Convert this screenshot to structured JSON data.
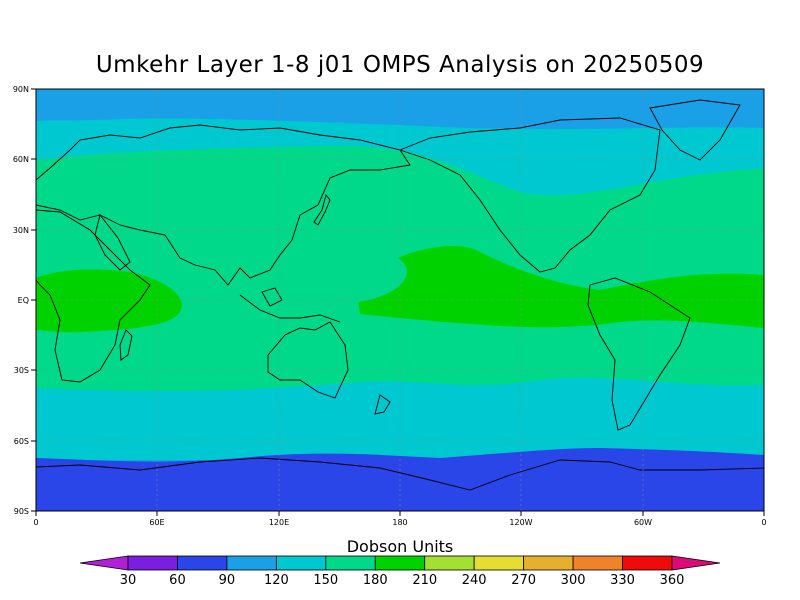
{
  "title": "Umkehr Layer 1-8 j01 OMPS Analysis on 20250509",
  "colorbar": {
    "title": "Dobson Units",
    "levels": [
      "30",
      "60",
      "90",
      "120",
      "150",
      "180",
      "210",
      "240",
      "270",
      "300",
      "330",
      "360"
    ],
    "colors": [
      "#b020d8",
      "#7a1ee0",
      "#2a45e8",
      "#1aa0e6",
      "#00c8d0",
      "#00d88a",
      "#00d200",
      "#a4e032",
      "#e6dc32",
      "#e6af2d",
      "#f0822a",
      "#f00a0a",
      "#dc0a78"
    ]
  },
  "axes": {
    "lat_labels": [
      "90N",
      "60N",
      "30N",
      "EQ",
      "30S",
      "60S",
      "90S"
    ],
    "lon_labels": [
      "0",
      "60E",
      "120E",
      "180",
      "120W",
      "60W",
      "0"
    ]
  },
  "chart_data": {
    "type": "heatmap",
    "title": "Umkehr Layer 1-8 j01 OMPS Analysis on 20250509",
    "units": "Dobson Units",
    "x_range": [
      0,
      360
    ],
    "y_range": [
      -90,
      90
    ],
    "bands_by_latitude": [
      {
        "lat_range": [
          "90N",
          "75N"
        ],
        "value_range": [
          90,
          120
        ]
      },
      {
        "lat_range": [
          "75N",
          "55N"
        ],
        "value_range": [
          150,
          180
        ]
      },
      {
        "lat_range": [
          "55N",
          "15N"
        ],
        "value_range": [
          180,
          210
        ]
      },
      {
        "lat_range": [
          "15N",
          "10S"
        ],
        "value_range": [
          210,
          240
        ]
      },
      {
        "lat_range": [
          "10S",
          "30S"
        ],
        "value_range": [
          180,
          210
        ]
      },
      {
        "lat_range": [
          "30S",
          "55S"
        ],
        "value_range": [
          150,
          180
        ]
      },
      {
        "lat_range": [
          "55S",
          "65S"
        ],
        "value_range": [
          120,
          150
        ]
      },
      {
        "lat_range": [
          "65S",
          "90S"
        ],
        "value_range": [
          60,
          90
        ]
      }
    ],
    "grid": true
  }
}
